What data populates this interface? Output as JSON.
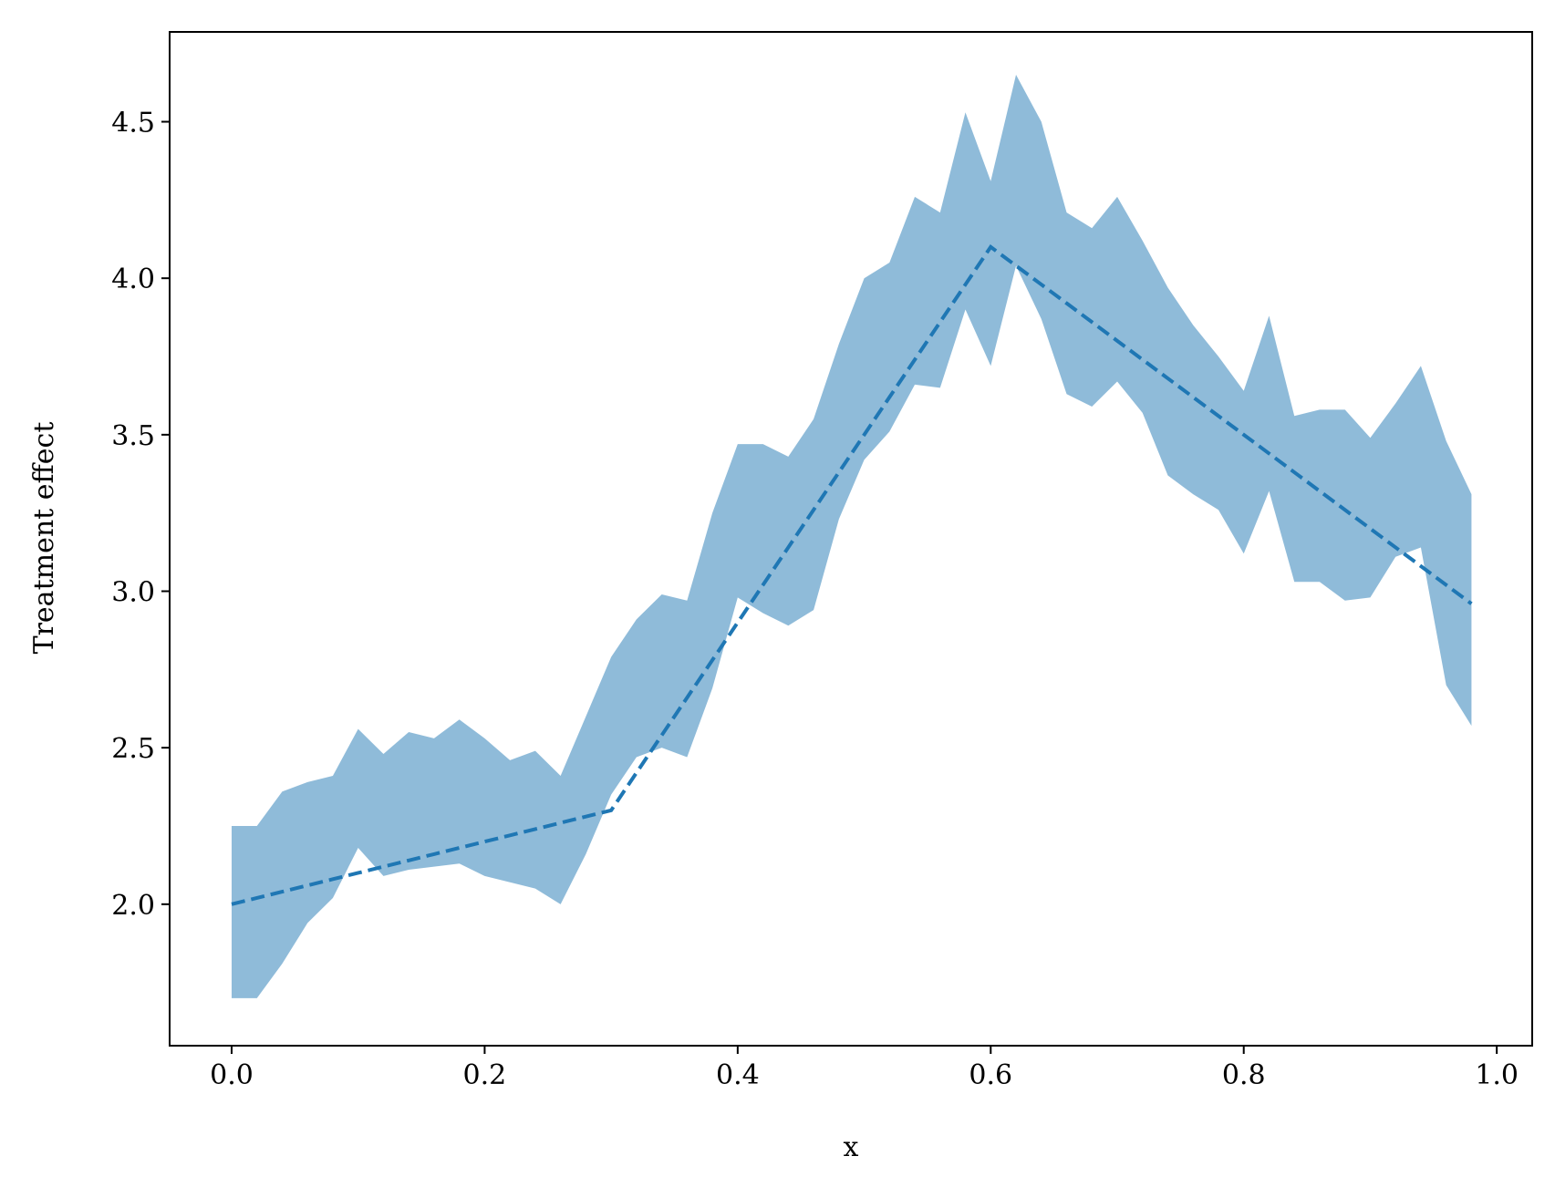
{
  "chart_data": {
    "type": "line",
    "xlabel": "x",
    "ylabel": "Treatment effect",
    "x": [
      0,
      0.02,
      0.04,
      0.06,
      0.08,
      0.1,
      0.12,
      0.14,
      0.16,
      0.18,
      0.2,
      0.22,
      0.24,
      0.26,
      0.28,
      0.3,
      0.32,
      0.34,
      0.36,
      0.38,
      0.4,
      0.42,
      0.44,
      0.46,
      0.48,
      0.5,
      0.52,
      0.54,
      0.56,
      0.58,
      0.6,
      0.62,
      0.64,
      0.66,
      0.68,
      0.7,
      0.72,
      0.74,
      0.76,
      0.78,
      0.8,
      0.82,
      0.84,
      0.86,
      0.88,
      0.9,
      0.92,
      0.94,
      0.96,
      0.98
    ],
    "line": {
      "color": "#1f77b4",
      "dashed": true,
      "values": [
        2.0,
        2.02,
        2.04,
        2.06,
        2.08,
        2.1,
        2.12,
        2.14,
        2.16,
        2.18,
        2.2,
        2.22,
        2.24,
        2.26,
        2.28,
        2.3,
        2.42,
        2.54,
        2.66,
        2.78,
        2.9,
        3.02,
        3.14,
        3.26,
        3.38,
        3.5,
        3.62,
        3.74,
        3.86,
        3.98,
        4.1,
        4.04,
        3.98,
        3.92,
        3.86,
        3.8,
        3.74,
        3.68,
        3.62,
        3.56,
        3.5,
        3.44,
        3.38,
        3.32,
        3.26,
        3.2,
        3.14,
        3.08,
        3.02,
        2.96
      ]
    },
    "band": {
      "color": "#1f77b4",
      "opacity": 0.5,
      "upper": [
        2.25,
        2.25,
        2.36,
        2.39,
        2.41,
        2.56,
        2.48,
        2.55,
        2.53,
        2.59,
        2.53,
        2.46,
        2.49,
        2.41,
        2.6,
        2.79,
        2.91,
        2.99,
        2.97,
        3.25,
        3.47,
        3.47,
        3.43,
        3.55,
        3.79,
        4.0,
        4.05,
        4.26,
        4.21,
        4.53,
        4.31,
        4.65,
        4.5,
        4.21,
        4.16,
        4.26,
        4.12,
        3.97,
        3.85,
        3.75,
        3.64,
        3.88,
        3.56,
        3.58,
        3.58,
        3.49,
        3.6,
        3.72,
        3.48,
        3.31
      ],
      "lower": [
        1.7,
        1.7,
        1.81,
        1.94,
        2.02,
        2.18,
        2.09,
        2.11,
        2.12,
        2.13,
        2.09,
        2.07,
        2.05,
        2.0,
        2.16,
        2.35,
        2.47,
        2.5,
        2.47,
        2.69,
        2.98,
        2.93,
        2.89,
        2.94,
        3.23,
        3.42,
        3.51,
        3.66,
        3.65,
        3.9,
        3.72,
        4.04,
        3.87,
        3.63,
        3.59,
        3.67,
        3.57,
        3.37,
        3.31,
        3.26,
        3.12,
        3.32,
        3.03,
        3.03,
        2.97,
        2.98,
        3.11,
        3.14,
        2.7,
        2.57
      ]
    },
    "xlim": [
      -0.049,
      1.028
    ],
    "ylim": [
      1.548,
      4.787
    ],
    "xticks": [
      {
        "value": 0,
        "label": "0.0"
      },
      {
        "value": 0.2,
        "label": "0.2"
      },
      {
        "value": 0.4,
        "label": "0.4"
      },
      {
        "value": 0.6,
        "label": "0.6"
      },
      {
        "value": 0.8,
        "label": "0.8"
      },
      {
        "value": 1,
        "label": "1.0"
      }
    ],
    "yticks": [
      {
        "value": 2,
        "label": "2.0"
      },
      2.5,
      {
        "value": 3,
        "label": "3.0"
      },
      3.5,
      {
        "value": 4,
        "label": "4.0"
      },
      4.5
    ],
    "grid": false
  }
}
